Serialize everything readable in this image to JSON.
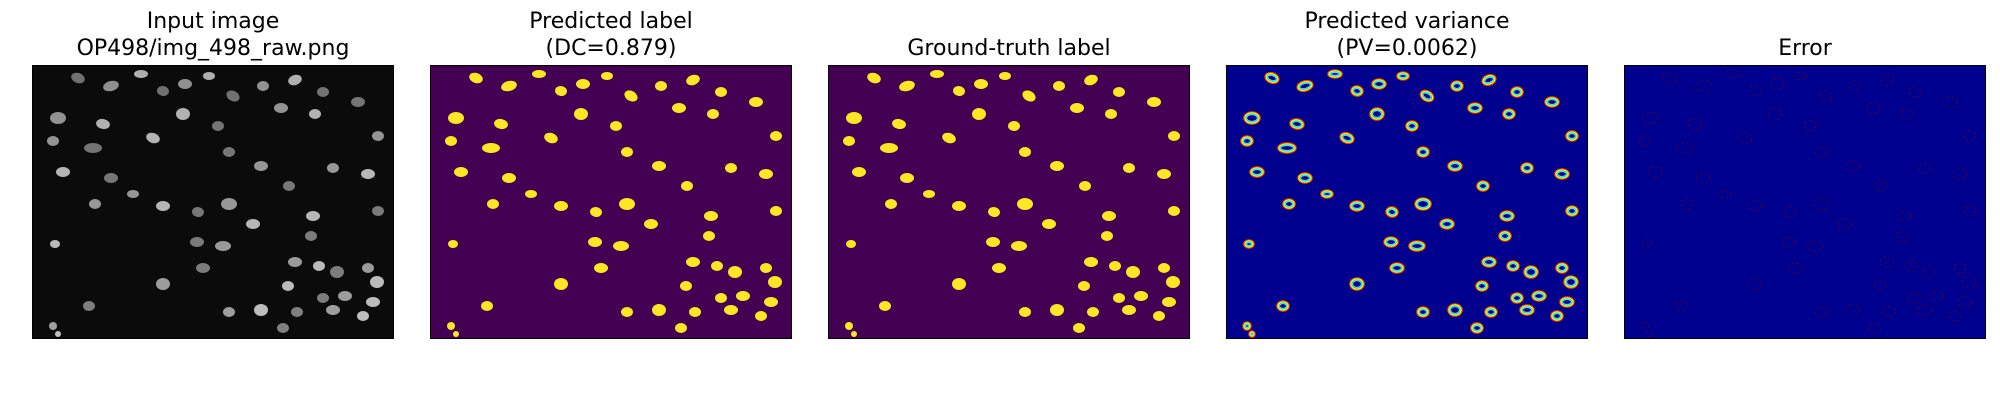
{
  "panels": [
    {
      "title_line1": "Input image",
      "title_line2": "OP498/img_498_raw.png",
      "kind": "raw",
      "background": "#0b0b0b"
    },
    {
      "title_line1": "Predicted label",
      "title_line2": "(DC=0.879)",
      "kind": "label",
      "background": "#440154",
      "foreground": "#fde725"
    },
    {
      "title_line1": "",
      "title_line2": "Ground-truth label",
      "kind": "label",
      "background": "#440154",
      "foreground": "#fde725"
    },
    {
      "title_line1": "Predicted variance",
      "title_line2": "(PV=0.0062)",
      "kind": "variance",
      "background": "#00008f"
    },
    {
      "title_line1": "",
      "title_line2": "Error",
      "kind": "error",
      "background": "#00008f"
    }
  ]
}
